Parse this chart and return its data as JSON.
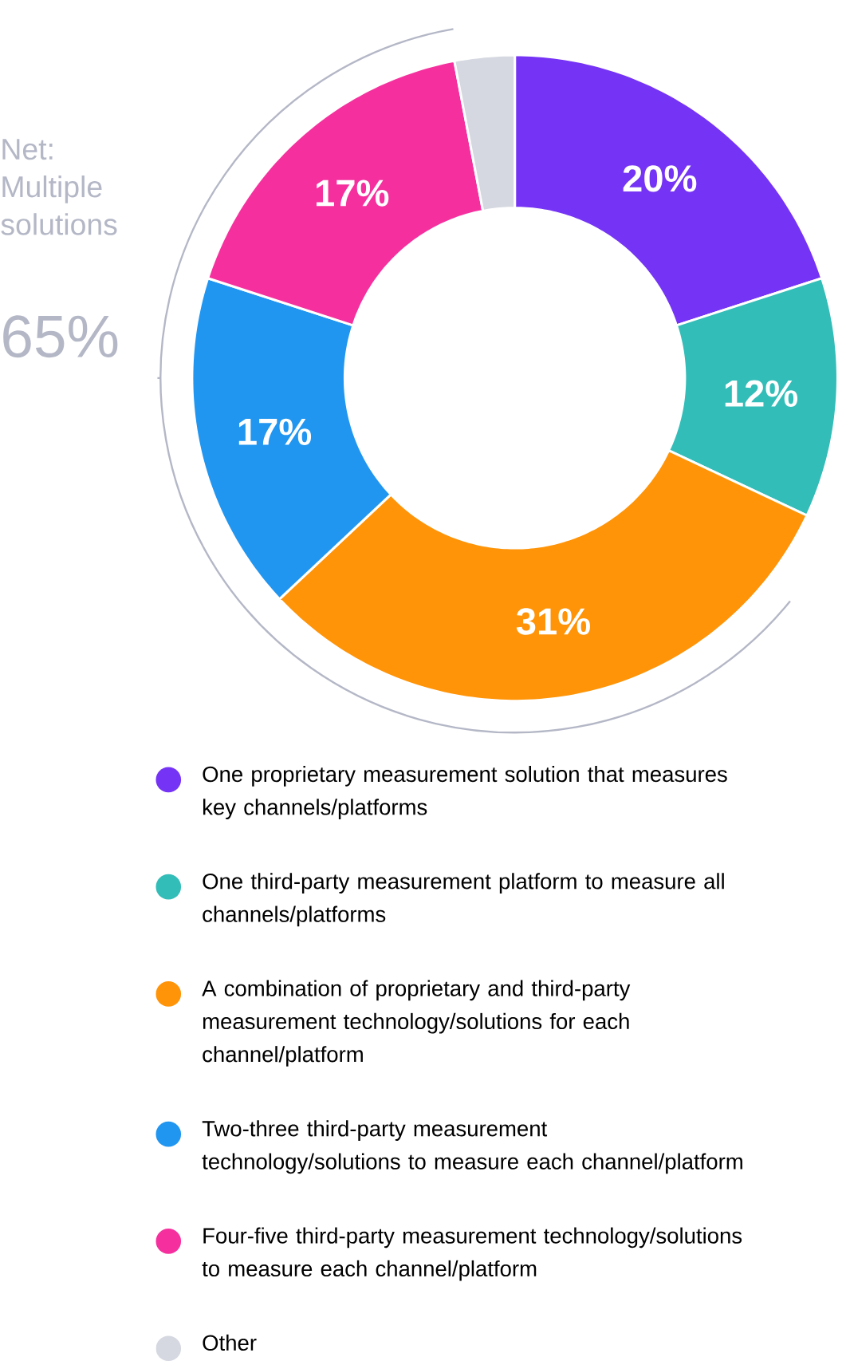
{
  "chart_data": {
    "type": "donut",
    "categories": [
      "One proprietary measurement solution that measures key channels/platforms",
      "One third-party measurement platform to measure all channels/platforms",
      "A combination of proprietary and third-party measurement technology/solutions for each channel/platform",
      "Two-three third-party measurement technology/solutions to measure each channel/platform",
      "Four-five third-party measurement technology/solutions to measure each channel/platform",
      "Other"
    ],
    "values": [
      20,
      12,
      31,
      17,
      17,
      3
    ],
    "colors": [
      "#7533f5",
      "#33bdb8",
      "#ff9408",
      "#2196f0",
      "#f5309e",
      "#d5d8e0"
    ],
    "value_labels": [
      "20%",
      "12%",
      "31%",
      "17%",
      "17%",
      null
    ],
    "annotations": [
      "Net: Multiple solutions",
      "65%"
    ],
    "legend": "bottom"
  }
}
